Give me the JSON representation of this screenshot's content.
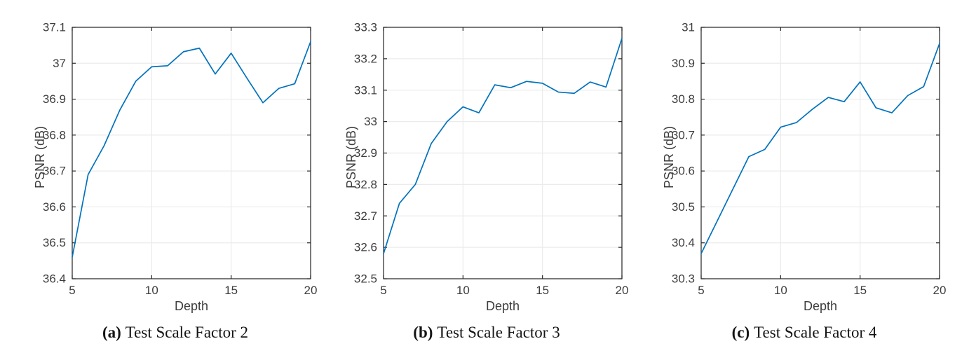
{
  "colors": {
    "line": "#0072BD",
    "grid": "#ebebeb",
    "axis": "#262626",
    "tick_text": "#3d3d3d",
    "caption_text": "#141414"
  },
  "chart_data": [
    {
      "type": "line",
      "caption": {
        "label": "(a)",
        "text": "Test Scale Factor 2"
      },
      "xlabel": "Depth",
      "ylabel": "PSNR (dB)",
      "x": [
        5,
        6,
        7,
        8,
        9,
        10,
        11,
        12,
        13,
        14,
        15,
        16,
        17,
        18,
        19,
        20
      ],
      "y": [
        36.46,
        36.69,
        36.77,
        36.87,
        36.95,
        36.99,
        36.993,
        37.032,
        37.042,
        36.97,
        37.028,
        36.958,
        36.89,
        36.93,
        36.943,
        37.06
      ],
      "xlim": [
        5,
        20
      ],
      "ylim": [
        36.4,
        37.1
      ],
      "xticks": [
        {
          "v": 5,
          "label": "5"
        },
        {
          "v": 10,
          "label": "10"
        },
        {
          "v": 15,
          "label": "15"
        },
        {
          "v": 20,
          "label": "20"
        }
      ],
      "yticks": [
        {
          "v": 36.4,
          "label": "36.4"
        },
        {
          "v": 36.5,
          "label": "36.5"
        },
        {
          "v": 36.6,
          "label": "36.6"
        },
        {
          "v": 36.7,
          "label": "36.7"
        },
        {
          "v": 36.8,
          "label": "36.8"
        },
        {
          "v": 36.9,
          "label": "36.9"
        },
        {
          "v": 37.0,
          "label": "37"
        },
        {
          "v": 37.1,
          "label": "37.1"
        }
      ],
      "grid": true,
      "legend": false,
      "line_color": "#0072BD"
    },
    {
      "type": "line",
      "caption": {
        "label": "(b)",
        "text": "Test Scale Factor 3"
      },
      "xlabel": "Depth",
      "ylabel": "PSNR (dB)",
      "x": [
        5,
        6,
        7,
        8,
        9,
        10,
        11,
        12,
        13,
        14,
        15,
        16,
        17,
        18,
        19,
        20
      ],
      "y": [
        32.58,
        32.74,
        32.8,
        32.93,
        33.0,
        33.047,
        33.028,
        33.117,
        33.108,
        33.128,
        33.122,
        33.094,
        33.09,
        33.126,
        33.11,
        33.265
      ],
      "xlim": [
        5,
        20
      ],
      "ylim": [
        32.5,
        33.3
      ],
      "xticks": [
        {
          "v": 5,
          "label": "5"
        },
        {
          "v": 10,
          "label": "10"
        },
        {
          "v": 15,
          "label": "15"
        },
        {
          "v": 20,
          "label": "20"
        }
      ],
      "yticks": [
        {
          "v": 32.5,
          "label": "32.5"
        },
        {
          "v": 32.6,
          "label": "32.6"
        },
        {
          "v": 32.7,
          "label": "32.7"
        },
        {
          "v": 32.8,
          "label": "32.8"
        },
        {
          "v": 32.9,
          "label": "32.9"
        },
        {
          "v": 33.0,
          "label": "33"
        },
        {
          "v": 33.1,
          "label": "33.1"
        },
        {
          "v": 33.2,
          "label": "33.2"
        },
        {
          "v": 33.3,
          "label": "33.3"
        }
      ],
      "grid": true,
      "legend": false,
      "line_color": "#0072BD"
    },
    {
      "type": "line",
      "caption": {
        "label": "(c)",
        "text": "Test Scale Factor 4"
      },
      "xlabel": "Depth",
      "ylabel": "PSNR (dB)",
      "x": [
        5,
        6,
        7,
        8,
        9,
        10,
        11,
        12,
        13,
        14,
        15,
        16,
        17,
        18,
        19,
        20
      ],
      "y": [
        30.37,
        30.46,
        30.55,
        30.64,
        30.66,
        30.722,
        30.735,
        30.772,
        30.805,
        30.793,
        30.848,
        30.776,
        30.762,
        30.81,
        30.835,
        30.955
      ],
      "xlim": [
        5,
        20
      ],
      "ylim": [
        30.3,
        31.0
      ],
      "xticks": [
        {
          "v": 5,
          "label": "5"
        },
        {
          "v": 10,
          "label": "10"
        },
        {
          "v": 15,
          "label": "15"
        },
        {
          "v": 20,
          "label": "20"
        }
      ],
      "yticks": [
        {
          "v": 30.3,
          "label": "30.3"
        },
        {
          "v": 30.4,
          "label": "30.4"
        },
        {
          "v": 30.5,
          "label": "30.5"
        },
        {
          "v": 30.6,
          "label": "30.6"
        },
        {
          "v": 30.7,
          "label": "30.7"
        },
        {
          "v": 30.8,
          "label": "30.8"
        },
        {
          "v": 30.9,
          "label": "30.9"
        },
        {
          "v": 31.0,
          "label": "31"
        }
      ],
      "grid": true,
      "legend": false,
      "line_color": "#0072BD"
    }
  ]
}
